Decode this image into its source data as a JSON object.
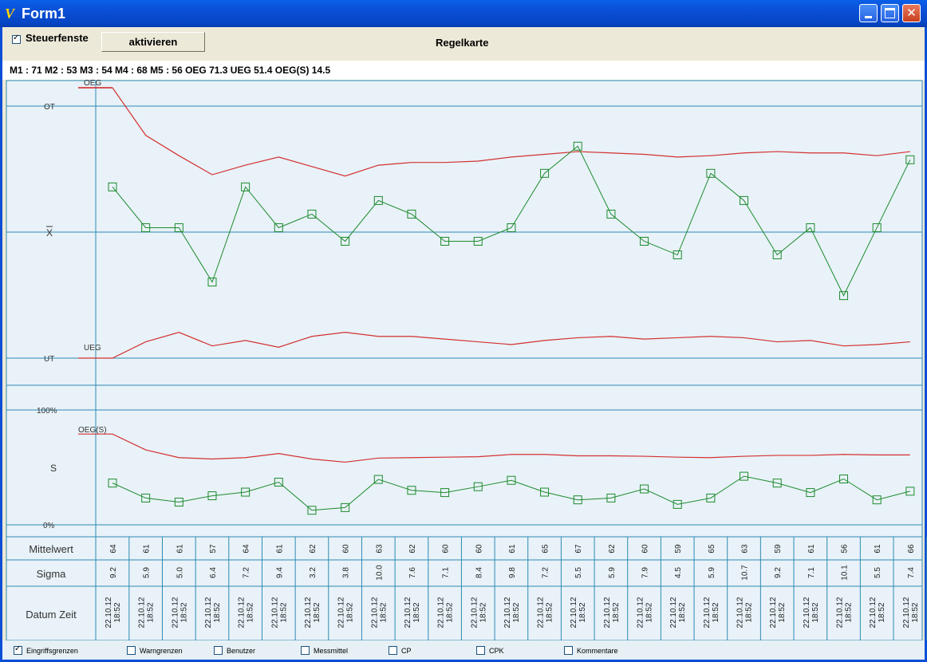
{
  "window": {
    "title": "Form1",
    "app_icon": "app-logo-icon"
  },
  "toolbar": {
    "steuer_label": "Steuerfenste",
    "steuer_checked": true,
    "activate_label": "aktivieren",
    "chart_title": "Regelkarte"
  },
  "stats": "M1 : 71  M2 : 53  M3 : 54  M4 : 68  M5 : 56  OEG 71.3  UEG 51.4  OEG(S) 14.5",
  "labels": {
    "oeg": "OEG",
    "ot": "OT",
    "xbar": "X",
    "ueg": "UEG",
    "ut": "UT",
    "p100": "100%",
    "oegs": "OEG(S)",
    "s": "S",
    "p0": "0%"
  },
  "row_labels": [
    "Mittelwert",
    "Sigma",
    "Datum Zeit"
  ],
  "colors": {
    "line": "#2e8ab4",
    "limit": "#d43030",
    "data": "#1e8a2e",
    "panel": "#e8f2f8"
  },
  "chart_data": {
    "type": "line",
    "x_count": 25,
    "mean": {
      "values": [
        64,
        61,
        61,
        57,
        64,
        61,
        62,
        60,
        63,
        62,
        60,
        60,
        61,
        65,
        67,
        62,
        60,
        59,
        65,
        63,
        59,
        61,
        56,
        61,
        66
      ],
      "upper_limit": [
        71.3,
        67.8,
        66.3,
        64.9,
        65.6,
        66.2,
        65.5,
        64.8,
        65.6,
        65.8,
        65.8,
        65.9,
        66.2,
        66.4,
        66.6,
        66.5,
        66.4,
        66.2,
        66.3,
        66.5,
        66.6,
        66.5,
        66.5,
        66.3,
        66.6
      ],
      "lower_limit": [
        51.4,
        52.6,
        53.3,
        52.3,
        52.7,
        52.2,
        53.0,
        53.3,
        53.0,
        53.0,
        52.8,
        52.6,
        52.4,
        52.7,
        52.9,
        53.0,
        52.8,
        52.9,
        53.0,
        52.9,
        52.6,
        52.7,
        52.3,
        52.4,
        52.6
      ],
      "ylim": [
        51.4,
        71.3
      ]
    },
    "sigma": {
      "values": [
        9.2,
        5.9,
        5.0,
        6.4,
        7.2,
        9.4,
        3.2,
        3.8,
        10.0,
        7.6,
        7.1,
        8.4,
        9.8,
        7.2,
        5.5,
        5.9,
        7.9,
        4.5,
        5.9,
        10.7,
        9.2,
        7.1,
        10.1,
        5.5,
        7.4
      ],
      "upper_limit": [
        20.0,
        16.5,
        14.8,
        14.5,
        14.8,
        15.7,
        14.5,
        13.8,
        14.7,
        14.8,
        14.9,
        15.0,
        15.5,
        15.5,
        15.2,
        15.2,
        15.1,
        14.9,
        14.8,
        15.1,
        15.3,
        15.3,
        15.5,
        15.4,
        15.4
      ],
      "ylim": [
        0,
        25.3
      ]
    },
    "datetime": [
      "22.10.12 18:52",
      "22.10.12 18:52",
      "22.10.12 18:52",
      "22.10.12 18:52",
      "22.10.12 18:52",
      "22.10.12 18:52",
      "22.10.12 18:52",
      "22.10.12 18:52",
      "22.10.12 18:52",
      "22.10.12 18:52",
      "22.10.12 18:52",
      "22.10.12 18:52",
      "22.10.12 18:52",
      "22.10.12 18:52",
      "22.10.12 18:52",
      "22.10.12 18:52",
      "22.10.12 18:52",
      "22.10.12 18:52",
      "22.10.12 18:52",
      "22.10.12 18:52",
      "22.10.12 18:52",
      "22.10.12 18:52",
      "22.10.12 18:52",
      "22.10.12 18:52",
      "22.10.12 18:52"
    ]
  },
  "options": [
    {
      "label": "Eingriffsgrenzen",
      "checked": true
    },
    {
      "label": "Warngrenzen",
      "checked": false
    },
    {
      "label": "Benutzer",
      "checked": false
    },
    {
      "label": "Messmittel",
      "checked": false
    },
    {
      "label": "CP",
      "checked": false
    },
    {
      "label": "CPK",
      "checked": false
    },
    {
      "label": "Kommentare",
      "checked": false
    }
  ]
}
